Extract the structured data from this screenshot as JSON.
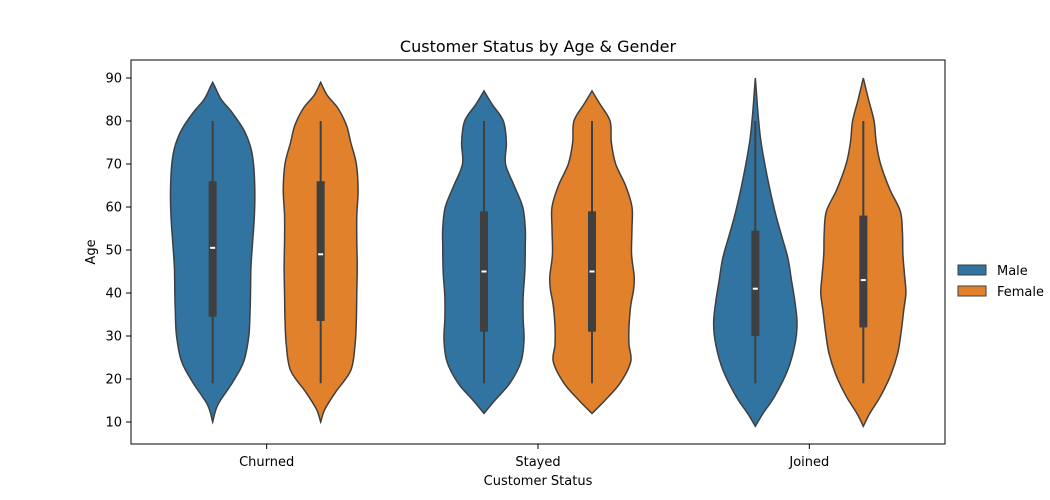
{
  "chart_data": {
    "type": "violin",
    "title": "Customer Status by Age & Gender",
    "xlabel": "Customer Status",
    "ylabel": "Age",
    "categories": [
      "Churned",
      "Stayed",
      "Joined"
    ],
    "ylim": [
      5,
      95
    ],
    "yticks": [
      10,
      20,
      30,
      40,
      50,
      60,
      70,
      80,
      90
    ],
    "grid": false,
    "legend_position": "right",
    "series": [
      {
        "name": "Male",
        "color": "#3274a1",
        "stats": [
          {
            "min": 19,
            "q1": 34.5,
            "median": 50.5,
            "q3": 66,
            "max": 80
          },
          {
            "min": 19,
            "q1": 31,
            "median": 45,
            "q3": 59,
            "max": 80
          },
          {
            "min": 19,
            "q1": 30,
            "median": 41,
            "q3": 54.5,
            "max": 80
          }
        ],
        "density": [
          [
            [
              10,
              0.0
            ],
            [
              14,
              0.12
            ],
            [
              19,
              0.45
            ],
            [
              24,
              0.72
            ],
            [
              30,
              0.84
            ],
            [
              36,
              0.87
            ],
            [
              40,
              0.88
            ],
            [
              46,
              0.89
            ],
            [
              52,
              0.93
            ],
            [
              58,
              0.97
            ],
            [
              64,
              0.98
            ],
            [
              70,
              0.95
            ],
            [
              74,
              0.88
            ],
            [
              78,
              0.72
            ],
            [
              82,
              0.45
            ],
            [
              85,
              0.2
            ],
            [
              88,
              0.05
            ],
            [
              89,
              0.0
            ]
          ],
          [
            [
              12,
              0.0
            ],
            [
              15,
              0.25
            ],
            [
              19,
              0.6
            ],
            [
              24,
              0.86
            ],
            [
              29,
              0.93
            ],
            [
              34,
              0.91
            ],
            [
              39,
              0.91
            ],
            [
              45,
              0.95
            ],
            [
              51,
              0.96
            ],
            [
              55,
              0.96
            ],
            [
              60,
              0.9
            ],
            [
              65,
              0.7
            ],
            [
              70,
              0.5
            ],
            [
              75,
              0.52
            ],
            [
              80,
              0.45
            ],
            [
              84,
              0.18
            ],
            [
              87,
              0.0
            ]
          ],
          [
            [
              9,
              0.0
            ],
            [
              12,
              0.18
            ],
            [
              16,
              0.45
            ],
            [
              22,
              0.75
            ],
            [
              28,
              0.92
            ],
            [
              33,
              0.97
            ],
            [
              38,
              0.92
            ],
            [
              43,
              0.84
            ],
            [
              48,
              0.76
            ],
            [
              53,
              0.62
            ],
            [
              58,
              0.48
            ],
            [
              64,
              0.34
            ],
            [
              70,
              0.22
            ],
            [
              76,
              0.12
            ],
            [
              82,
              0.06
            ],
            [
              86,
              0.03
            ],
            [
              90,
              0.0
            ]
          ]
        ]
      },
      {
        "name": "Female",
        "color": "#e1812c",
        "stats": [
          {
            "min": 19,
            "q1": 33.5,
            "median": 49,
            "q3": 66,
            "max": 80
          },
          {
            "min": 19,
            "q1": 31,
            "median": 45,
            "q3": 59,
            "max": 80
          },
          {
            "min": 19,
            "q1": 32,
            "median": 43,
            "q3": 58,
            "max": 80
          }
        ],
        "density": [
          [
            [
              10,
              0.0
            ],
            [
              13,
              0.1
            ],
            [
              17,
              0.35
            ],
            [
              22,
              0.7
            ],
            [
              28,
              0.8
            ],
            [
              34,
              0.83
            ],
            [
              40,
              0.84
            ],
            [
              46,
              0.85
            ],
            [
              52,
              0.84
            ],
            [
              58,
              0.84
            ],
            [
              64,
              0.87
            ],
            [
              70,
              0.83
            ],
            [
              75,
              0.7
            ],
            [
              79,
              0.6
            ],
            [
              83,
              0.4
            ],
            [
              86,
              0.15
            ],
            [
              89,
              0.0
            ]
          ],
          [
            [
              12,
              0.0
            ],
            [
              15,
              0.3
            ],
            [
              19,
              0.65
            ],
            [
              24,
              0.9
            ],
            [
              28,
              0.86
            ],
            [
              32,
              0.86
            ],
            [
              37,
              0.9
            ],
            [
              41,
              0.97
            ],
            [
              44,
              0.98
            ],
            [
              49,
              0.92
            ],
            [
              55,
              0.93
            ],
            [
              60,
              0.93
            ],
            [
              65,
              0.78
            ],
            [
              70,
              0.55
            ],
            [
              75,
              0.45
            ],
            [
              80,
              0.42
            ],
            [
              84,
              0.18
            ],
            [
              87,
              0.0
            ]
          ],
          [
            [
              9,
              0.0
            ],
            [
              12,
              0.15
            ],
            [
              16,
              0.4
            ],
            [
              21,
              0.64
            ],
            [
              26,
              0.8
            ],
            [
              31,
              0.88
            ],
            [
              36,
              0.94
            ],
            [
              40,
              0.99
            ],
            [
              44,
              0.96
            ],
            [
              49,
              0.92
            ],
            [
              54,
              0.91
            ],
            [
              59,
              0.86
            ],
            [
              64,
              0.62
            ],
            [
              70,
              0.4
            ],
            [
              75,
              0.3
            ],
            [
              80,
              0.25
            ],
            [
              85,
              0.12
            ],
            [
              90,
              0.0
            ]
          ]
        ]
      }
    ]
  }
}
